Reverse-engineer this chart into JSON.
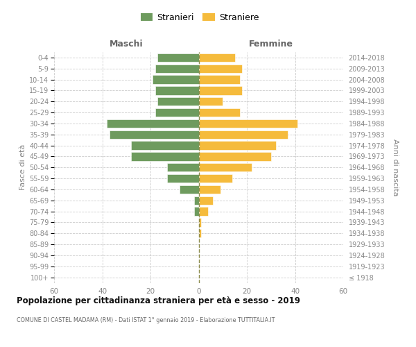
{
  "age_groups": [
    "100+",
    "95-99",
    "90-94",
    "85-89",
    "80-84",
    "75-79",
    "70-74",
    "65-69",
    "60-64",
    "55-59",
    "50-54",
    "45-49",
    "40-44",
    "35-39",
    "30-34",
    "25-29",
    "20-24",
    "15-19",
    "10-14",
    "5-9",
    "0-4"
  ],
  "birth_years": [
    "≤ 1918",
    "1919-1923",
    "1924-1928",
    "1929-1933",
    "1934-1938",
    "1939-1943",
    "1944-1948",
    "1949-1953",
    "1954-1958",
    "1959-1963",
    "1964-1968",
    "1969-1973",
    "1974-1978",
    "1979-1983",
    "1984-1988",
    "1989-1993",
    "1994-1998",
    "1999-2003",
    "2004-2008",
    "2009-2013",
    "2014-2018"
  ],
  "maschi": [
    0,
    0,
    0,
    0,
    0,
    0,
    2,
    2,
    8,
    13,
    13,
    28,
    28,
    37,
    38,
    18,
    17,
    18,
    19,
    18,
    17
  ],
  "femmine": [
    0,
    0,
    0,
    0,
    1,
    1,
    4,
    6,
    9,
    14,
    22,
    30,
    32,
    37,
    41,
    17,
    10,
    18,
    17,
    18,
    15
  ],
  "color_maschi": "#6e9b5e",
  "color_femmine": "#f5bb3c",
  "color_dashed": "#8a8a4a",
  "title": "Popolazione per cittadinanza straniera per età e sesso - 2019",
  "subtitle": "COMUNE DI CASTEL MADAMA (RM) - Dati ISTAT 1° gennaio 2019 - Elaborazione TUTTITALIA.IT",
  "xlabel_left": "Maschi",
  "xlabel_right": "Femmine",
  "ylabel_left": "Fasce di età",
  "ylabel_right": "Anni di nascita",
  "legend_maschi": "Stranieri",
  "legend_femmine": "Straniere",
  "xlim": 60,
  "background_color": "#ffffff",
  "grid_color": "#cccccc",
  "tick_color": "#888888",
  "title_color": "#111111",
  "subtitle_color": "#666666",
  "header_color": "#666666"
}
